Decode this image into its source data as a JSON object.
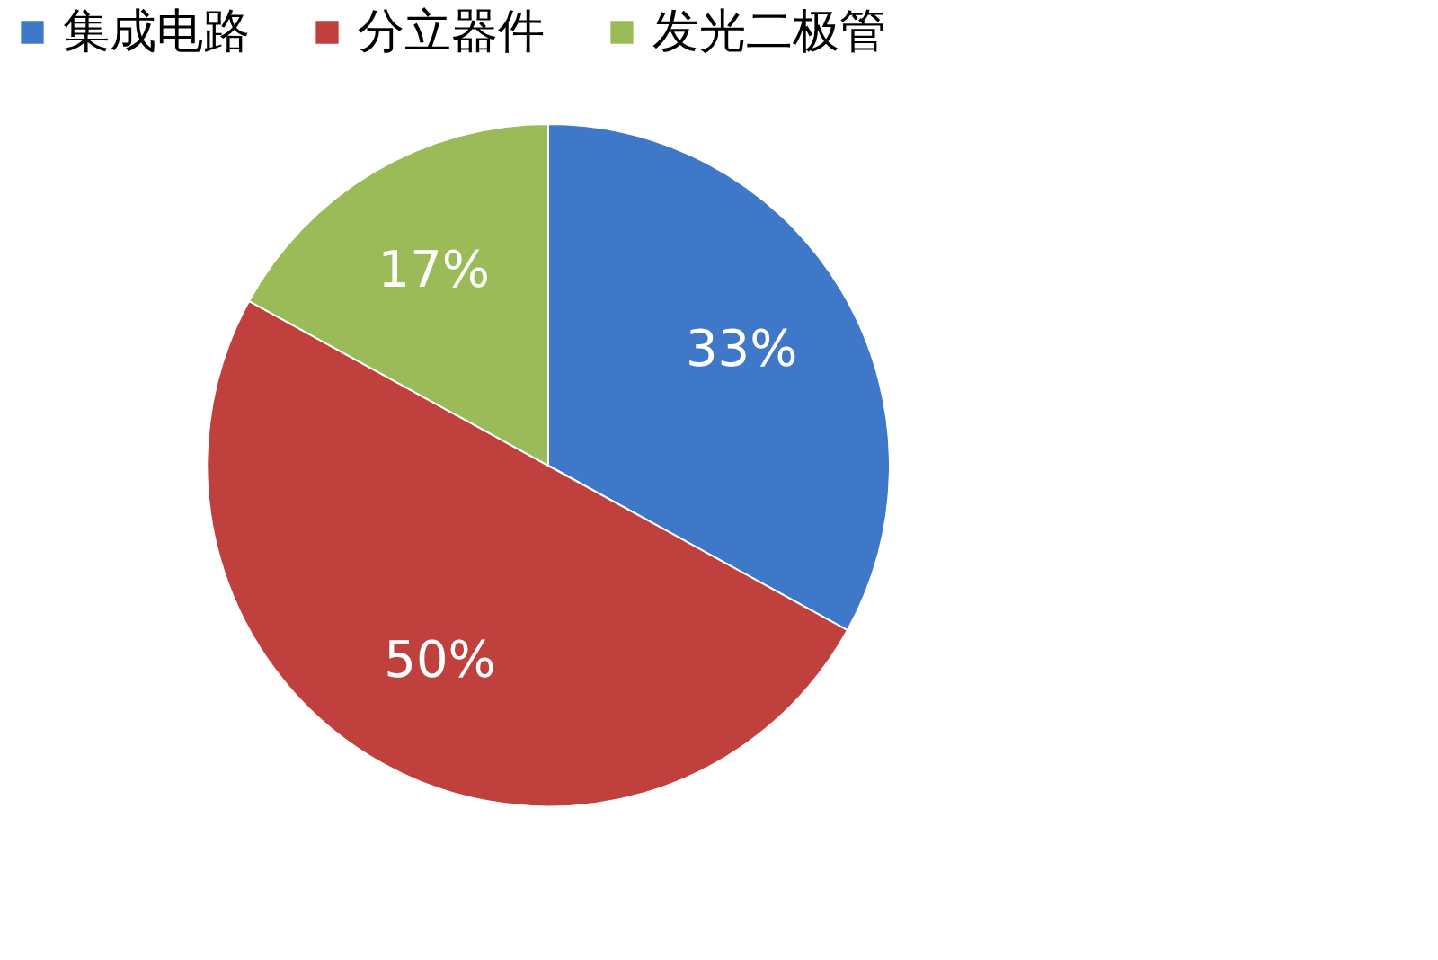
{
  "chart_data": {
    "type": "pie",
    "categories": [
      "集成电路",
      "分立器件",
      "发光二极管"
    ],
    "values": [
      33,
      50,
      17
    ],
    "colors": [
      "#3f78c8",
      "#c0403d",
      "#9bbb59"
    ],
    "value_labels": [
      "33%",
      "50%",
      "17%"
    ],
    "legend": "top"
  }
}
